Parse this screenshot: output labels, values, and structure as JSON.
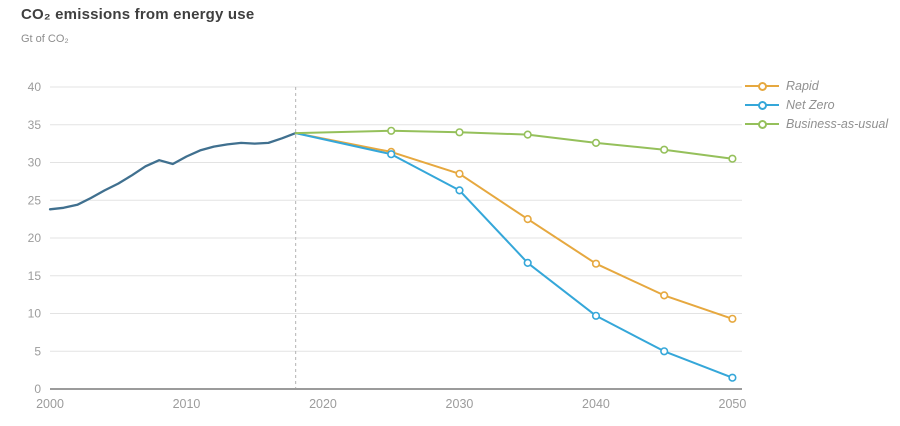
{
  "chart_data": {
    "type": "line",
    "title": "CO₂ emissions from energy use",
    "ylabel": "Gt of CO₂",
    "xlabel": "",
    "x_ticks": [
      2000,
      2010,
      2020,
      2030,
      2040,
      2050
    ],
    "y_ticks": [
      0,
      5,
      10,
      15,
      20,
      25,
      30,
      35,
      40
    ],
    "xlim": [
      2000,
      2050.7
    ],
    "ylim": [
      0,
      40
    ],
    "grid": "horizontal",
    "legend_position": "top-right",
    "divider_year": 2018,
    "colors": {
      "grid": "#e3e3e3",
      "axis": "#9b9b9b",
      "divider": "#b3b3b3",
      "tick_label": "#9c9c9c",
      "history": "#40708f",
      "rapid": "#e6a83f",
      "net_zero": "#35a7d9",
      "business_as_usual": "#95c05b"
    },
    "series": [
      {
        "name": "History",
        "color": "#40708f",
        "in_legend": false,
        "line_width": 2.3,
        "x": [
          2000,
          2001,
          2002,
          2003,
          2004,
          2005,
          2006,
          2007,
          2008,
          2009,
          2010,
          2011,
          2012,
          2013,
          2014,
          2015,
          2016,
          2017,
          2018
        ],
        "y": [
          23.8,
          24.0,
          24.4,
          25.3,
          26.3,
          27.2,
          28.3,
          29.5,
          30.3,
          29.8,
          30.8,
          31.6,
          32.1,
          32.4,
          32.6,
          32.5,
          32.6,
          33.2,
          33.9
        ],
        "marker_x": []
      },
      {
        "name": "Rapid",
        "color": "#e6a83f",
        "in_legend": true,
        "line_width": 2,
        "x": [
          2018,
          2025,
          2030,
          2035,
          2040,
          2045,
          2050
        ],
        "y": [
          33.9,
          31.4,
          28.5,
          22.5,
          16.6,
          12.4,
          9.3
        ],
        "marker_x": [
          2025,
          2030,
          2035,
          2040,
          2045,
          2050
        ]
      },
      {
        "name": "Net Zero",
        "color": "#35a7d9",
        "in_legend": true,
        "line_width": 2,
        "x": [
          2018,
          2025,
          2030,
          2035,
          2040,
          2045,
          2050
        ],
        "y": [
          33.9,
          31.1,
          26.3,
          16.7,
          9.7,
          5.0,
          1.5
        ],
        "marker_x": [
          2025,
          2030,
          2035,
          2040,
          2045,
          2050
        ]
      },
      {
        "name": "Business-as-usual",
        "color": "#95c05b",
        "in_legend": true,
        "line_width": 2,
        "x": [
          2018,
          2025,
          2030,
          2035,
          2040,
          2045,
          2050
        ],
        "y": [
          33.9,
          34.2,
          34.0,
          33.7,
          32.6,
          31.7,
          30.5
        ],
        "marker_x": [
          2025,
          2030,
          2035,
          2040,
          2045,
          2050
        ]
      }
    ]
  }
}
